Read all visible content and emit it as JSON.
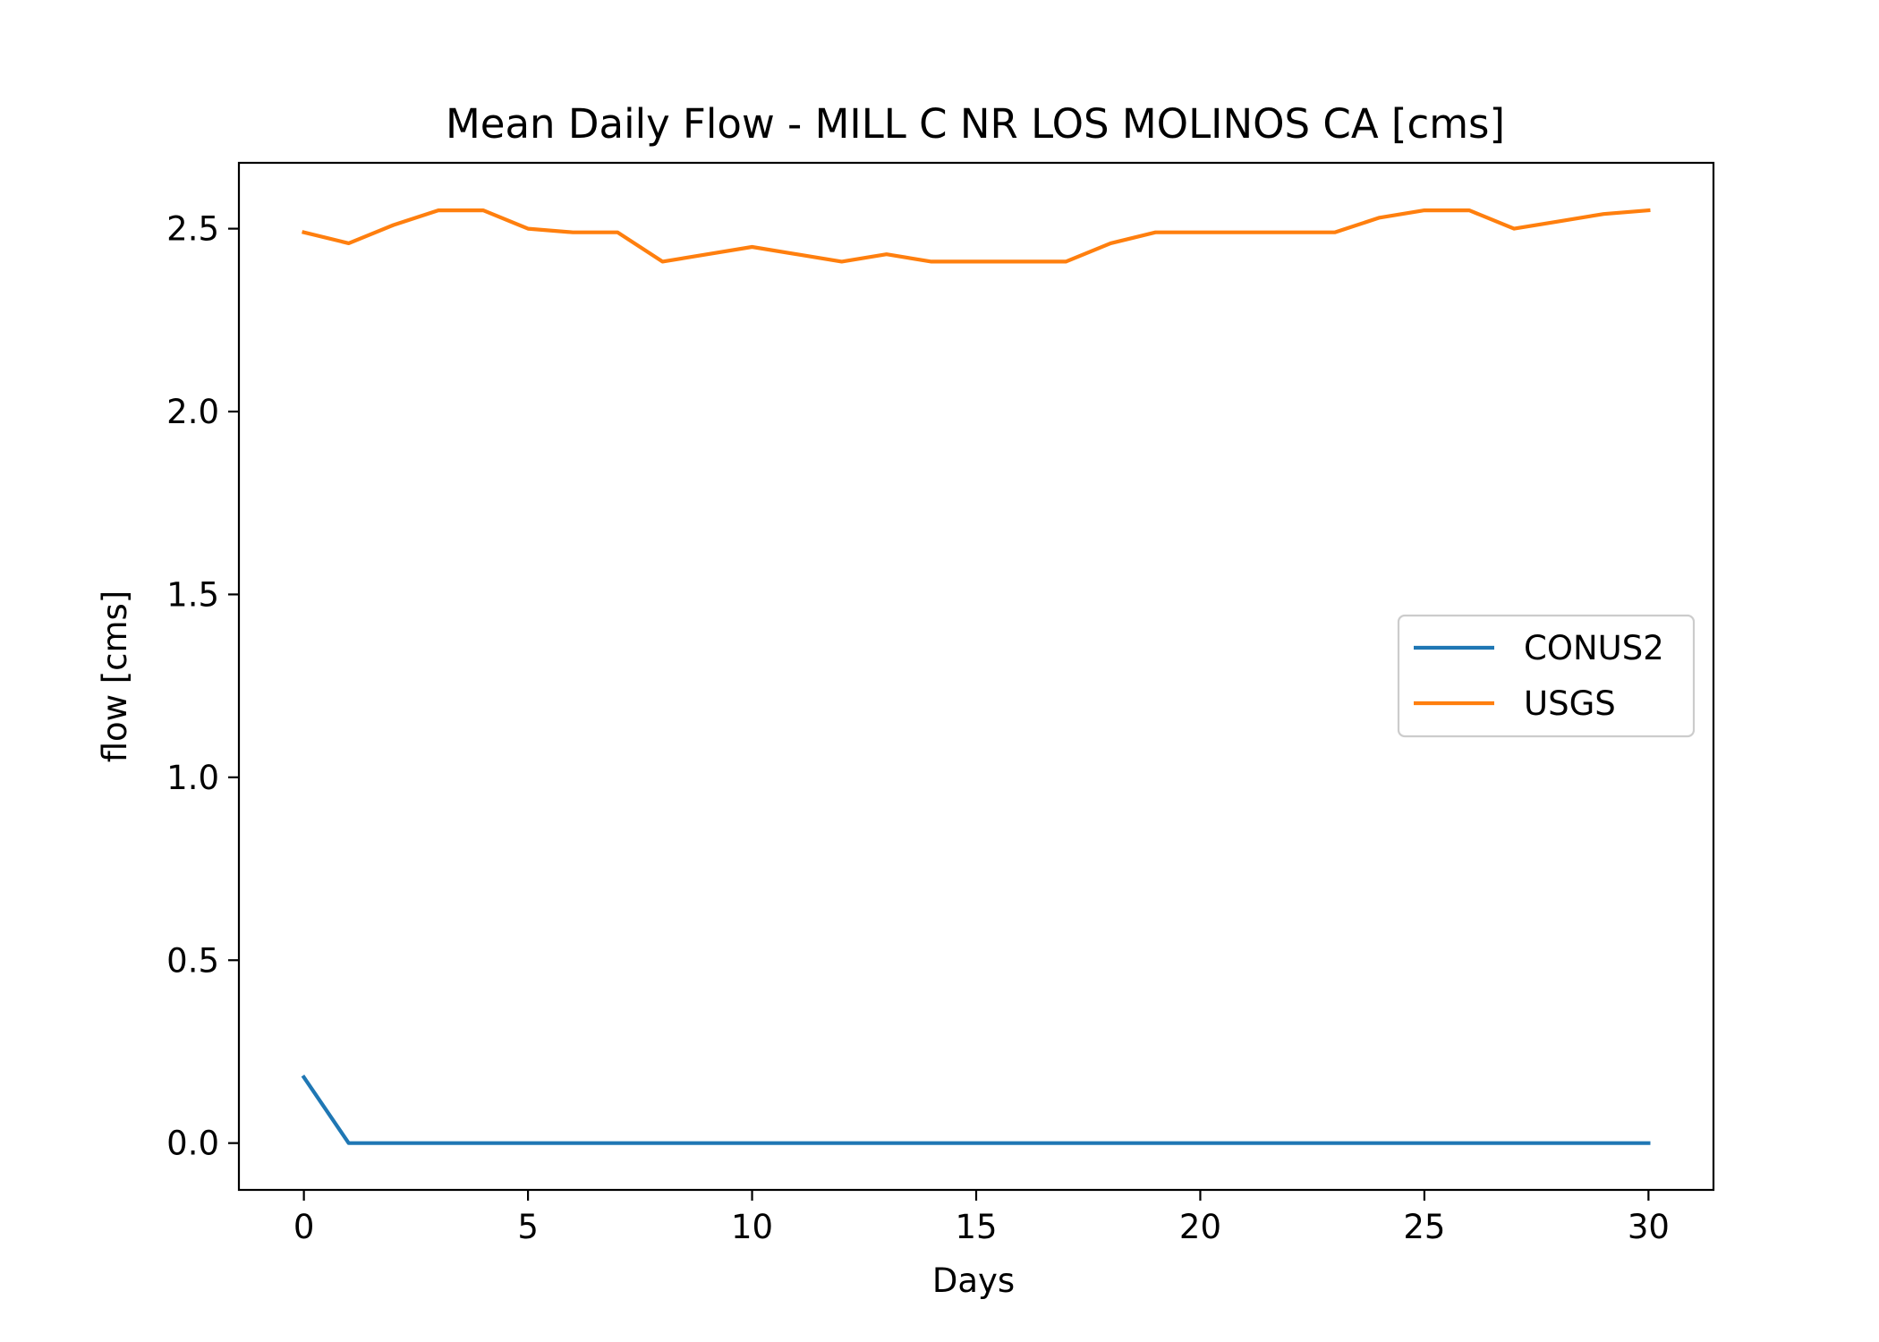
{
  "chart_data": {
    "type": "line",
    "title": "Mean Daily Flow - MILL C NR LOS MOLINOS CA [cms]",
    "xlabel": "Days",
    "ylabel": "flow [cms]",
    "xlim": [
      -1.45,
      31.45
    ],
    "ylim": [
      -0.128,
      2.68
    ],
    "xticks": [
      0,
      5,
      10,
      15,
      20,
      25,
      30
    ],
    "yticks": [
      0.0,
      0.5,
      1.0,
      1.5,
      2.0,
      2.5
    ],
    "xtick_labels": [
      "0",
      "5",
      "10",
      "15",
      "20",
      "25",
      "30"
    ],
    "ytick_labels": [
      "0.0",
      "0.5",
      "1.0",
      "1.5",
      "2.0",
      "2.5"
    ],
    "grid": false,
    "legend_position": "center-right",
    "x": [
      0,
      1,
      2,
      3,
      4,
      5,
      6,
      7,
      8,
      9,
      10,
      11,
      12,
      13,
      14,
      15,
      16,
      17,
      18,
      19,
      20,
      21,
      22,
      23,
      24,
      25,
      26,
      27,
      28,
      29,
      30
    ],
    "series": [
      {
        "name": "CONUS2",
        "color": "#1f77b4",
        "values": [
          0.18,
          0,
          0,
          0,
          0,
          0,
          0,
          0,
          0,
          0,
          0,
          0,
          0,
          0,
          0,
          0,
          0,
          0,
          0,
          0,
          0,
          0,
          0,
          0,
          0,
          0,
          0,
          0,
          0,
          0,
          0
        ]
      },
      {
        "name": "USGS",
        "color": "#ff7f0e",
        "values": [
          2.49,
          2.46,
          2.51,
          2.55,
          2.55,
          2.5,
          2.49,
          2.49,
          2.41,
          2.43,
          2.45,
          2.43,
          2.41,
          2.43,
          2.41,
          2.41,
          2.41,
          2.41,
          2.46,
          2.49,
          2.49,
          2.49,
          2.49,
          2.49,
          2.53,
          2.55,
          2.55,
          2.5,
          2.52,
          2.54,
          2.55
        ]
      }
    ]
  }
}
